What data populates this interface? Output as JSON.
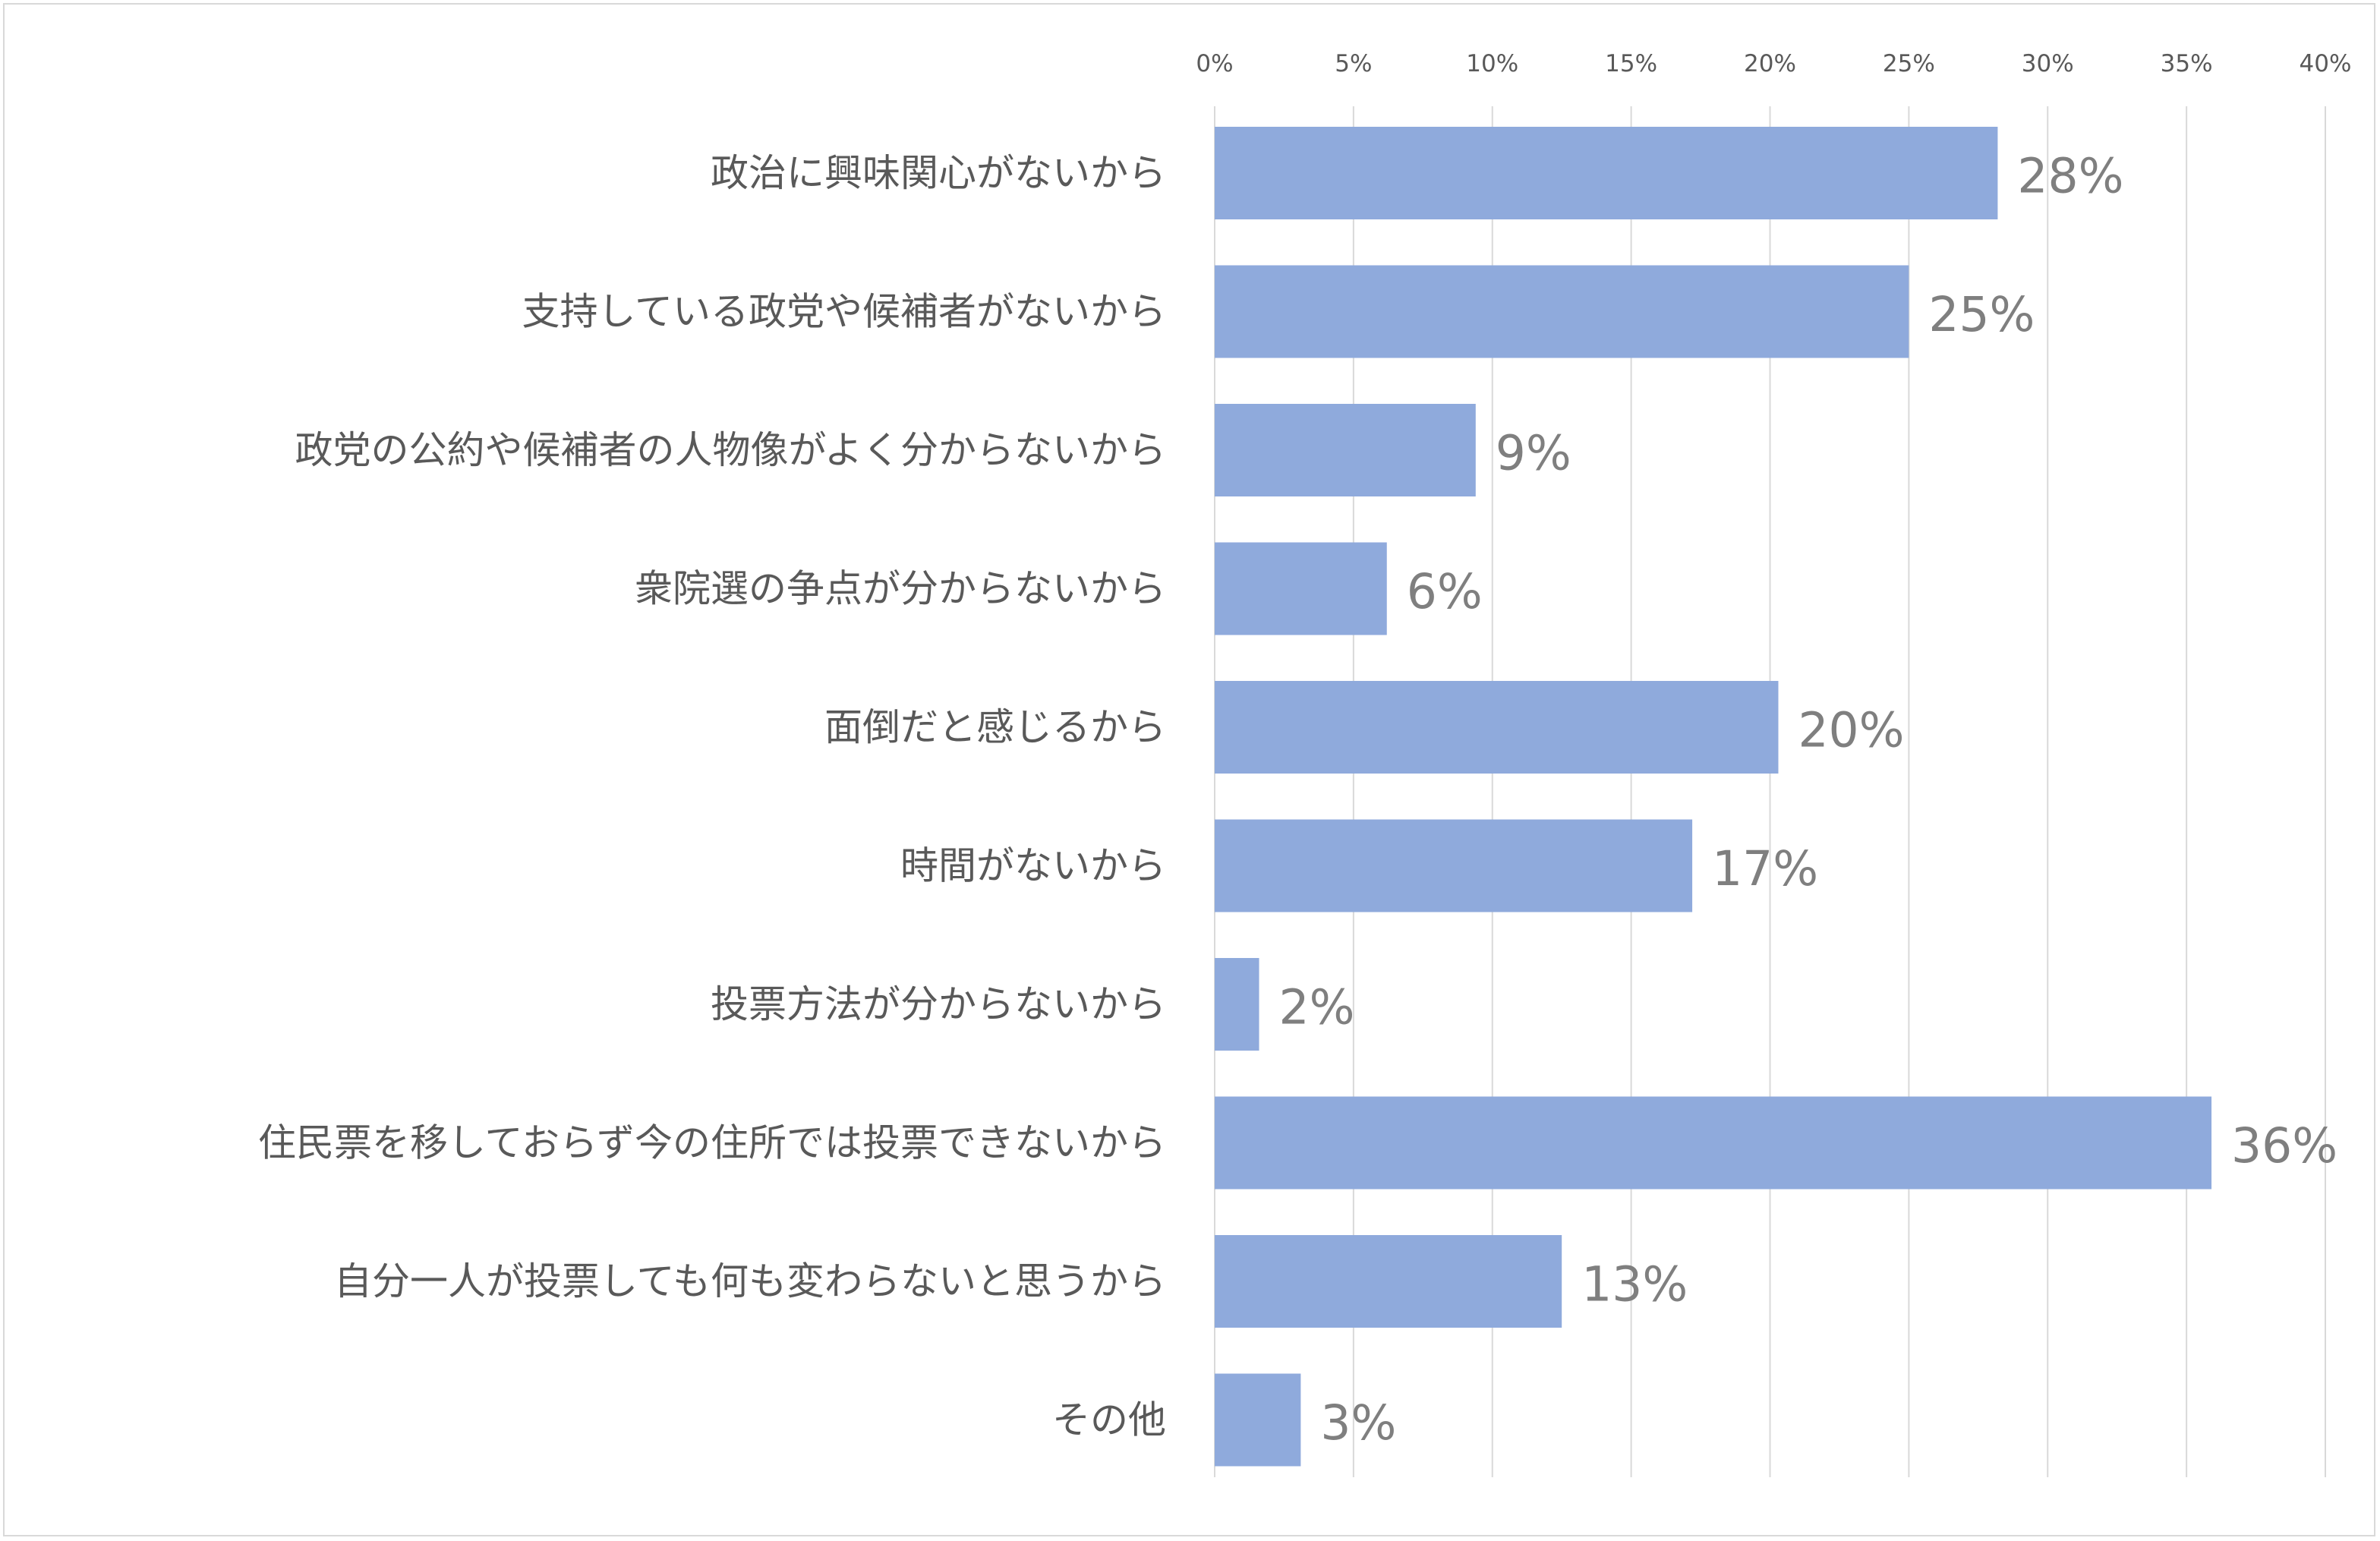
{
  "chart_data": {
    "type": "bar",
    "orientation": "horizontal",
    "categories": [
      "政治に興味関心がないから",
      "支持している政党や候補者がないから",
      "政党の公約や候補者の人物像がよく分からないから",
      "衆院選の争点が分からないから",
      "面倒だと感じるから",
      "時間がないから",
      "投票方法が分からないから",
      "住民票を移しておらず今の住所では投票できないから",
      "自分一人が投票しても何も変わらないと思うから",
      "その他"
    ],
    "values": [
      28.2,
      25.0,
      9.4,
      6.2,
      20.3,
      17.2,
      1.6,
      35.9,
      12.5,
      3.1
    ],
    "data_labels": [
      "28%",
      "25%",
      "9%",
      "6%",
      "20%",
      "17%",
      "2%",
      "36%",
      "13%",
      "3%"
    ],
    "x_ticks": [
      "0%",
      "5%",
      "10%",
      "15%",
      "20%",
      "25%",
      "30%",
      "35%",
      "40%"
    ],
    "xlim": [
      0,
      40
    ],
    "x_axis_position": "top",
    "grid": "vertical",
    "legend": "none",
    "title": "",
    "xlabel": "",
    "ylabel": "",
    "colors": {
      "bar": "#8faadc",
      "grid": "#d9d9d9",
      "tick_text": "#595959",
      "category_text": "#595959",
      "data_label_text": "#7f7f7f",
      "border": "#d9d9d9"
    }
  }
}
